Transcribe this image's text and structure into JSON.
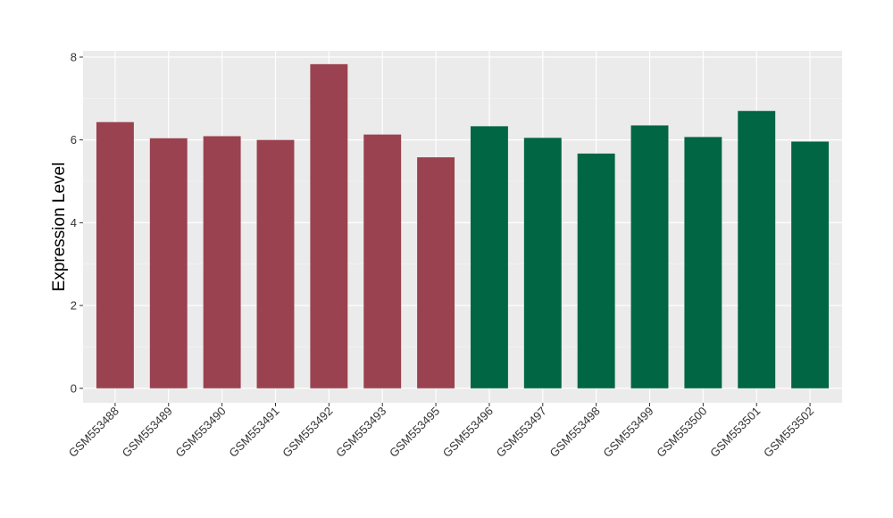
{
  "chart_data": {
    "type": "bar",
    "title": "",
    "xlabel": "",
    "ylabel": "Expression Level",
    "ylim": [
      -0.35,
      8.15
    ],
    "yticks": [
      0,
      2,
      4,
      6,
      8
    ],
    "grid": true,
    "legend": "none",
    "categories": [
      "GSM553488",
      "GSM553489",
      "GSM553490",
      "GSM553491",
      "GSM553492",
      "GSM553493",
      "GSM553495",
      "GSM553496",
      "GSM553497",
      "GSM553498",
      "GSM553499",
      "GSM553500",
      "GSM553501",
      "GSM553502"
    ],
    "values": [
      6.43,
      6.04,
      6.09,
      6.0,
      7.83,
      6.13,
      5.58,
      6.33,
      6.05,
      5.67,
      6.35,
      6.07,
      6.7,
      5.96
    ],
    "groups": [
      "group1",
      "group1",
      "group1",
      "group1",
      "group1",
      "group1",
      "group1",
      "group2",
      "group2",
      "group2",
      "group2",
      "group2",
      "group2",
      "group2"
    ],
    "colors": {
      "group1": "#9a4250",
      "group2": "#006644"
    }
  }
}
